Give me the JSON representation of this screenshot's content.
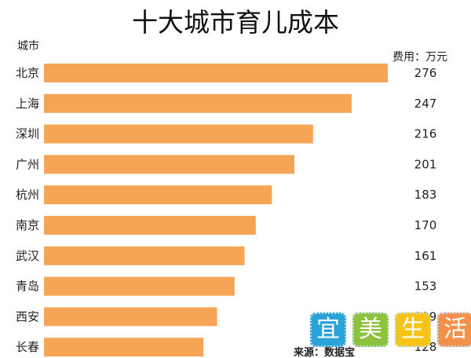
{
  "chart_data": {
    "type": "bar",
    "orientation": "horizontal",
    "title": "十大城市育儿成本",
    "ylabel": "城市",
    "unit_label": "费用：万元",
    "categories": [
      "北京",
      "上海",
      "深圳",
      "广州",
      "杭州",
      "南京",
      "武汉",
      "青岛",
      "西安",
      "长春"
    ],
    "values": [
      276,
      247,
      216,
      201,
      183,
      170,
      161,
      153,
      139,
      128
    ],
    "xlim": [
      0,
      276
    ],
    "bar_color": "#F6A557",
    "grid": false,
    "legend": "none"
  },
  "watermark": {
    "chars": [
      "宜",
      "美",
      "生",
      "活"
    ],
    "colors": [
      "#2BA3D8",
      "#8DC23F",
      "#F7C416",
      "#F5904A"
    ]
  },
  "source": "来源：数据宝"
}
